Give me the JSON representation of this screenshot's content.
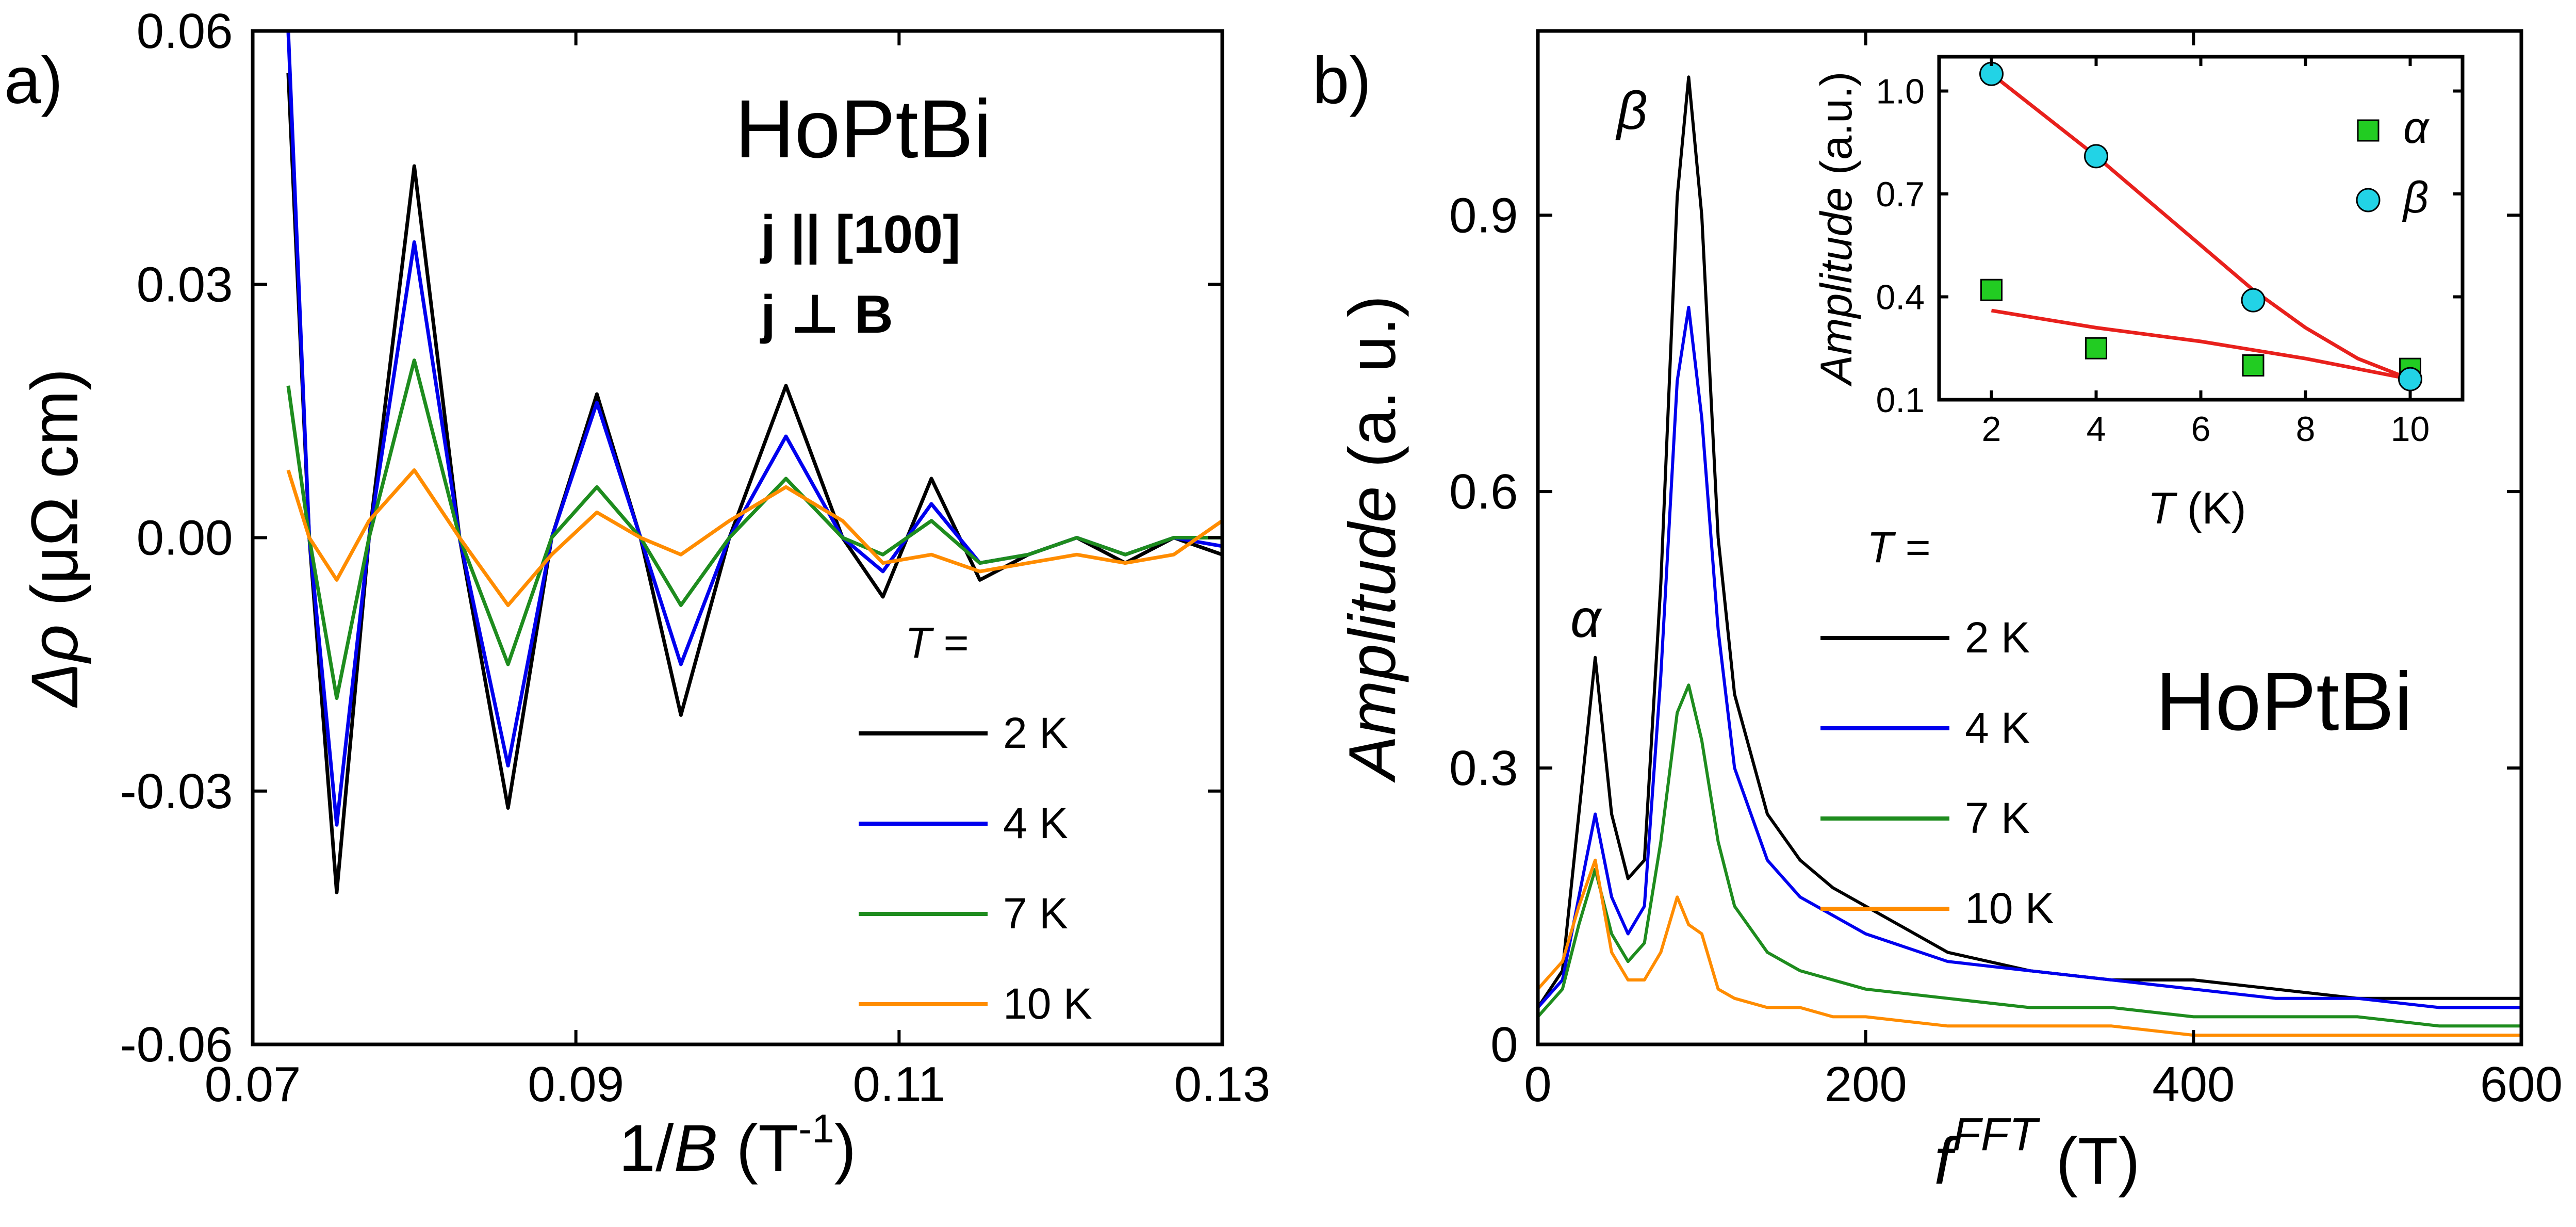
{
  "chart_data": [
    {
      "panel": "a)",
      "type": "line",
      "xlabel": "1/B (T⁻¹)",
      "xlabel_parts": {
        "prefix": "1/",
        "var": "B",
        "unit": " (T",
        "sup": "-1",
        "close": ")"
      },
      "ylabel": "Δρ (μΩ cm)",
      "ylabel_parts": {
        "var": "Δρ",
        "unit": " (μΩ cm)"
      },
      "xlim": [
        0.07,
        0.13
      ],
      "ylim": [
        -0.06,
        0.06
      ],
      "x_ticks": [
        0.07,
        0.09,
        0.11,
        0.13
      ],
      "x_tick_labels": [
        "0.07",
        "0.09",
        "0.11",
        "0.13"
      ],
      "y_ticks": [
        -0.06,
        -0.03,
        0.0,
        0.03,
        0.06
      ],
      "y_tick_labels": [
        "-0.06",
        "-0.03",
        "0.00",
        "0.03",
        "0.06"
      ],
      "annotations": {
        "compound": "HoPtBi",
        "current": "j || [100]",
        "perp": "j ⊥ B"
      },
      "legend_title": "T =",
      "series": [
        {
          "name": "2 K",
          "color": "#000000",
          "x": [
            0.0722,
            0.0735,
            0.0752,
            0.0772,
            0.08,
            0.0828,
            0.0858,
            0.0885,
            0.0913,
            0.094,
            0.0965,
            0.0995,
            0.103,
            0.1065,
            0.109,
            0.112,
            0.115,
            0.118,
            0.121,
            0.124,
            0.127,
            0.13
          ],
          "y": [
            0.055,
            0.0,
            -0.042,
            0.0,
            0.044,
            0.0,
            -0.032,
            0.0,
            0.017,
            0.0,
            -0.021,
            0.0,
            0.018,
            0.0,
            -0.007,
            0.007,
            -0.005,
            -0.002,
            0.0,
            -0.003,
            0.0,
            -0.002
          ]
        },
        {
          "name": "4 K",
          "color": "#0000ee",
          "x": [
            0.0722,
            0.0735,
            0.0752,
            0.0772,
            0.08,
            0.0828,
            0.0858,
            0.0885,
            0.0913,
            0.094,
            0.0965,
            0.0995,
            0.103,
            0.1065,
            0.109,
            0.112,
            0.115,
            0.118,
            0.121,
            0.124,
            0.127,
            0.13
          ],
          "y": [
            0.06,
            0.0,
            -0.034,
            0.0,
            0.035,
            0.0,
            -0.027,
            0.0,
            0.016,
            0.0,
            -0.015,
            0.0,
            0.012,
            0.0,
            -0.004,
            0.004,
            -0.003,
            -0.002,
            0.0,
            -0.002,
            0.0,
            -0.001
          ]
        },
        {
          "name": "7 K",
          "color": "#1e8c1e",
          "x": [
            0.0722,
            0.0735,
            0.0752,
            0.0772,
            0.08,
            0.0828,
            0.0858,
            0.0885,
            0.0913,
            0.094,
            0.0965,
            0.0995,
            0.103,
            0.1065,
            0.109,
            0.112,
            0.115,
            0.118,
            0.121,
            0.124,
            0.127,
            0.13
          ],
          "y": [
            0.018,
            0.0,
            -0.019,
            0.0,
            0.021,
            0.0,
            -0.015,
            0.0,
            0.006,
            0.0,
            -0.008,
            0.0,
            0.007,
            0.0,
            -0.002,
            0.002,
            -0.003,
            -0.002,
            0.0,
            -0.002,
            0.0,
            0.0
          ]
        },
        {
          "name": "10 K",
          "color": "#ff8c00",
          "x": [
            0.0722,
            0.0735,
            0.0752,
            0.0772,
            0.08,
            0.0828,
            0.0858,
            0.0885,
            0.0913,
            0.094,
            0.0965,
            0.0995,
            0.103,
            0.1065,
            0.109,
            0.112,
            0.115,
            0.118,
            0.121,
            0.124,
            0.127,
            0.13
          ],
          "y": [
            0.008,
            0.0,
            -0.005,
            0.002,
            0.008,
            0.0,
            -0.008,
            -0.002,
            0.003,
            0.0,
            -0.002,
            0.002,
            0.006,
            0.002,
            -0.003,
            -0.002,
            -0.004,
            -0.003,
            -0.002,
            -0.003,
            -0.002,
            0.002
          ]
        }
      ]
    },
    {
      "panel": "b)",
      "type": "line",
      "xlabel": "f^FFT (T)",
      "xlabel_parts": {
        "var": "f",
        "sup": "FFT",
        "unit": " (T)"
      },
      "ylabel": "Amplitude (a. u.)",
      "ylabel_parts": {
        "var": "Amplitude",
        "unit": " (a. u.)"
      },
      "xlim": [
        0,
        600
      ],
      "ylim": [
        0,
        1.1
      ],
      "x_ticks": [
        0,
        200,
        400,
        600
      ],
      "x_tick_labels": [
        "0",
        "200",
        "400",
        "600"
      ],
      "y_ticks": [
        0,
        0.3,
        0.6,
        0.9
      ],
      "y_tick_labels": [
        "0",
        "0.3",
        "0.6",
        "0.9"
      ],
      "annotations": {
        "compound": "HoPtBi",
        "alpha": "α",
        "beta": "β"
      },
      "legend_title": "T =",
      "series": [
        {
          "name": "2 K",
          "color": "#000000",
          "x": [
            0,
            15,
            25,
            35,
            45,
            55,
            65,
            75,
            85,
            92,
            100,
            110,
            120,
            140,
            160,
            180,
            200,
            250,
            300,
            350,
            400,
            450,
            500,
            550,
            600
          ],
          "y": [
            0.04,
            0.08,
            0.25,
            0.42,
            0.25,
            0.18,
            0.2,
            0.5,
            0.92,
            1.05,
            0.9,
            0.55,
            0.38,
            0.25,
            0.2,
            0.17,
            0.15,
            0.1,
            0.08,
            0.07,
            0.07,
            0.06,
            0.05,
            0.05,
            0.05
          ]
        },
        {
          "name": "4 K",
          "color": "#0000ee",
          "x": [
            0,
            15,
            25,
            35,
            45,
            55,
            65,
            75,
            85,
            92,
            100,
            110,
            120,
            140,
            160,
            180,
            200,
            250,
            300,
            350,
            400,
            450,
            500,
            550,
            600
          ],
          "y": [
            0.04,
            0.07,
            0.16,
            0.25,
            0.16,
            0.12,
            0.15,
            0.4,
            0.72,
            0.8,
            0.68,
            0.45,
            0.3,
            0.2,
            0.16,
            0.14,
            0.12,
            0.09,
            0.08,
            0.07,
            0.06,
            0.05,
            0.05,
            0.04,
            0.04
          ]
        },
        {
          "name": "7 K",
          "color": "#1e8c1e",
          "x": [
            0,
            15,
            25,
            35,
            45,
            55,
            65,
            75,
            85,
            92,
            100,
            110,
            120,
            140,
            160,
            180,
            200,
            250,
            300,
            350,
            400,
            450,
            500,
            550,
            600
          ],
          "y": [
            0.03,
            0.06,
            0.13,
            0.19,
            0.12,
            0.09,
            0.11,
            0.22,
            0.36,
            0.39,
            0.33,
            0.22,
            0.15,
            0.1,
            0.08,
            0.07,
            0.06,
            0.05,
            0.04,
            0.04,
            0.03,
            0.03,
            0.03,
            0.02,
            0.02
          ]
        },
        {
          "name": "10 K",
          "color": "#ff8c00",
          "x": [
            0,
            15,
            25,
            35,
            45,
            55,
            65,
            75,
            85,
            92,
            100,
            110,
            120,
            140,
            160,
            180,
            200,
            250,
            300,
            350,
            400,
            450,
            500,
            550,
            600
          ],
          "y": [
            0.06,
            0.09,
            0.15,
            0.2,
            0.1,
            0.07,
            0.07,
            0.1,
            0.16,
            0.13,
            0.12,
            0.06,
            0.05,
            0.04,
            0.04,
            0.03,
            0.03,
            0.02,
            0.02,
            0.02,
            0.01,
            0.01,
            0.01,
            0.01,
            0.01
          ]
        }
      ]
    },
    {
      "panel": "b) inset",
      "type": "scatter",
      "xlabel": "T (K)",
      "xlabel_parts": {
        "var": "T",
        "unit": " (K)"
      },
      "ylabel": "Amplitude (a.u.)",
      "ylabel_parts": {
        "var": "Amplitude",
        "unit": " (a.u.)"
      },
      "xlim": [
        1,
        11
      ],
      "ylim": [
        0.1,
        1.1
      ],
      "x_ticks": [
        2,
        4,
        6,
        8,
        10
      ],
      "x_tick_labels": [
        "2",
        "4",
        "6",
        "8",
        "10"
      ],
      "y_ticks": [
        0.1,
        0.4,
        0.7,
        1.0
      ],
      "y_tick_labels": [
        "0.1",
        "0.4",
        "0.7",
        "1.0"
      ],
      "series": [
        {
          "name": "α",
          "marker": "square",
          "color": "#22cc22",
          "x": [
            2,
            4,
            7,
            10
          ],
          "y": [
            0.42,
            0.25,
            0.2,
            0.19
          ]
        },
        {
          "name": "β",
          "marker": "circle",
          "color": "#22d3e6",
          "x": [
            2,
            4,
            7,
            10
          ],
          "y": [
            1.05,
            0.81,
            0.39,
            0.16
          ]
        }
      ],
      "fits": [
        {
          "name": "α fit",
          "color": "#e8201c",
          "x": [
            2,
            4,
            6,
            8,
            10
          ],
          "y": [
            0.36,
            0.31,
            0.27,
            0.22,
            0.16
          ]
        },
        {
          "name": "β fit",
          "color": "#e8201c",
          "x": [
            2,
            3,
            4,
            5,
            6,
            7,
            8,
            9,
            10
          ],
          "y": [
            1.05,
            0.93,
            0.81,
            0.68,
            0.55,
            0.42,
            0.31,
            0.22,
            0.16
          ]
        }
      ]
    }
  ]
}
